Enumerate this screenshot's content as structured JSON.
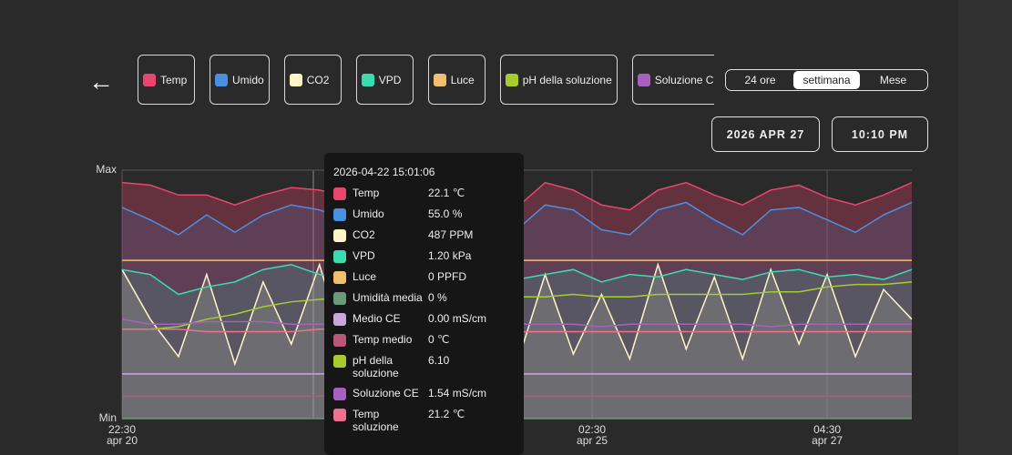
{
  "chart_data": {
    "type": "line",
    "x": [
      0,
      6,
      12,
      18,
      24,
      30,
      36,
      42,
      48,
      54,
      60,
      66,
      72,
      78,
      84,
      90,
      96,
      102,
      108,
      114,
      120,
      126,
      132,
      138,
      144,
      150,
      156,
      162,
      168
    ],
    "xlim": [
      0,
      168
    ],
    "xticks": [
      {
        "value": 0,
        "label": "22:30\napr 20"
      },
      {
        "value": 100,
        "label": "02:30\napr 25"
      },
      {
        "value": 150,
        "label": "04:30\napr 27"
      }
    ],
    "ylim": [
      0,
      100
    ],
    "yticks": [
      {
        "value": 0,
        "label": "Min"
      },
      {
        "value": 100,
        "label": "Max"
      }
    ],
    "grid": true,
    "series": [
      {
        "name": "Temp",
        "color": "#e8466e",
        "values": [
          95,
          94,
          90,
          90,
          86,
          90,
          93,
          92,
          89,
          84,
          85,
          87,
          93,
          89,
          85,
          95,
          92,
          86,
          84,
          92,
          95,
          90,
          86,
          92,
          94,
          89,
          86,
          90,
          95
        ]
      },
      {
        "name": "Umido",
        "color": "#4a90e2",
        "values": [
          85,
          80,
          74,
          82,
          75,
          82,
          86,
          84,
          80,
          73,
          75,
          80,
          86,
          82,
          76,
          86,
          84,
          76,
          74,
          84,
          87,
          80,
          74,
          84,
          85,
          80,
          75,
          82,
          87
        ]
      },
      {
        "name": "CO2",
        "color": "#fff6c8",
        "values": [
          60,
          40,
          25,
          58,
          22,
          55,
          30,
          62,
          24,
          40,
          28,
          55,
          25,
          60,
          22,
          58,
          26,
          50,
          24,
          62,
          28,
          57,
          24,
          60,
          30,
          58,
          25,
          52,
          40
        ]
      },
      {
        "name": "VPD",
        "color": "#3ddbb0",
        "values": [
          60,
          58,
          50,
          53,
          55,
          60,
          62,
          58,
          56,
          57,
          55,
          60,
          58,
          57,
          56,
          58,
          60,
          55,
          58,
          57,
          60,
          58,
          56,
          59,
          60,
          57,
          58,
          56,
          60
        ]
      },
      {
        "name": "Luce",
        "color": "#f0c070",
        "values": [
          63.7,
          63.7,
          63.7,
          63.7,
          63.7,
          63.7,
          63.7,
          63.7,
          63.7,
          63.7,
          63.7,
          63.7,
          63.7,
          63.7,
          63.7,
          63.7,
          63.7,
          63.7,
          63.7,
          63.7,
          63.7,
          63.7,
          63.7,
          63.7,
          63.7,
          63.7,
          63.7,
          63.7,
          63.7
        ]
      },
      {
        "name": "Umidità media",
        "color": "#6a9a78",
        "values": [
          0,
          0,
          0,
          0,
          0,
          0,
          0,
          0,
          0,
          0,
          0,
          0,
          0,
          0,
          0,
          0,
          0,
          0,
          0,
          0,
          0,
          0,
          0,
          0,
          0,
          0,
          0,
          0,
          0
        ]
      },
      {
        "name": "Medio CE",
        "color": "#c8a8dc",
        "values": [
          18,
          18,
          18,
          18,
          18,
          18,
          18,
          18,
          18,
          18,
          18,
          18,
          18,
          18,
          18,
          18,
          18,
          18,
          18,
          18,
          18,
          18,
          18,
          18,
          18,
          18,
          18,
          18,
          18
        ]
      },
      {
        "name": "Temp medio",
        "color": "#b85878",
        "values": [
          9,
          9,
          9,
          9,
          9,
          9,
          9,
          9,
          9,
          9,
          9,
          9,
          9,
          9,
          9,
          9,
          9,
          9,
          9,
          9,
          9,
          9,
          9,
          9,
          9,
          9,
          9,
          9,
          9
        ]
      },
      {
        "name": "pH della soluzione",
        "color": "#a8cc30",
        "values": [
          36,
          36,
          37,
          40,
          42,
          45,
          47,
          48,
          49,
          49,
          49,
          48,
          48,
          49,
          49,
          49,
          50,
          49,
          49,
          50,
          50,
          50,
          50,
          51,
          51,
          53,
          54,
          54,
          55
        ]
      },
      {
        "name": "Soluzione CE",
        "color": "#a860c0",
        "values": [
          40,
          38,
          38,
          39,
          39,
          39,
          38,
          38,
          38,
          38,
          38,
          38,
          39,
          38,
          38,
          38,
          38,
          37,
          38,
          38,
          38,
          38,
          38,
          37,
          38,
          38,
          38,
          38,
          38
        ]
      },
      {
        "name": "Temp soluzione",
        "color": "#f07090",
        "values": [
          36,
          36,
          36,
          35,
          35,
          35,
          35,
          36,
          36,
          35,
          35,
          35,
          35,
          35,
          35,
          35,
          35,
          35,
          35,
          35,
          35,
          35,
          35,
          35,
          35,
          35,
          35,
          35,
          35
        ]
      }
    ]
  },
  "filters": [
    {
      "label": "Temp",
      "color": "#e8466e"
    },
    {
      "label": "Umido",
      "color": "#4a90e2"
    },
    {
      "label": "CO2",
      "color": "#fff6c8"
    },
    {
      "label": "VPD",
      "color": "#3ddbb0"
    },
    {
      "label": "Luce",
      "color": "#f0c070"
    },
    {
      "label": "pH della soluzione",
      "color": "#a8cc30"
    },
    {
      "label": "Soluzione CE",
      "color": "#a860c0"
    }
  ],
  "range_tabs": {
    "options": [
      "24 ore",
      "settimana",
      "Mese"
    ],
    "selected": 1
  },
  "date_button": "2026 APR 27",
  "time_button": "10:10 PM",
  "tooltip": {
    "time": "2026-04-22 15:01:06",
    "values": [
      "22.1 ℃",
      "55.0 %",
      "487 PPM",
      "1.20 kPa",
      "0 PPFD",
      "0 %",
      "0.00 mS/cm",
      "0 ℃",
      "6.10",
      "1.54 mS/cm",
      "21.2 ℃"
    ]
  }
}
